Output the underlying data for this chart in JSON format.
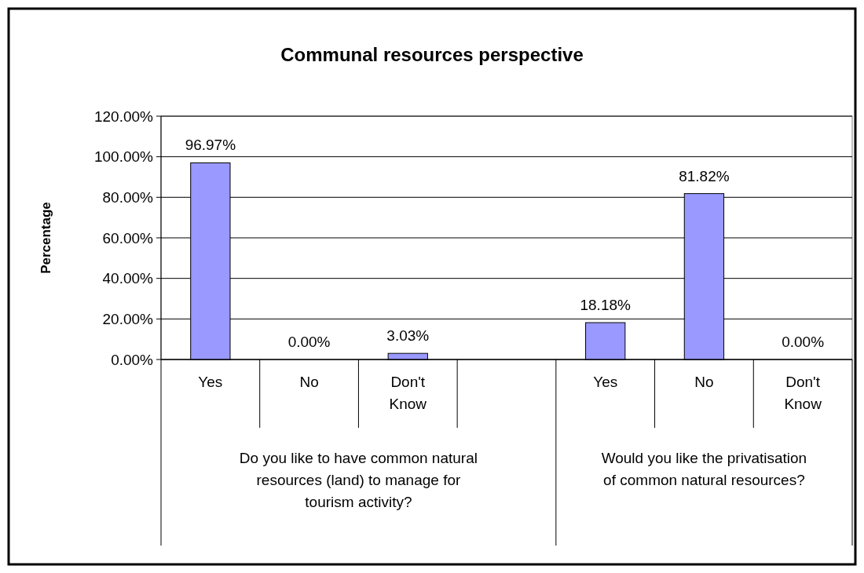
{
  "chart_data": {
    "type": "bar",
    "title": "Communal resources perspective",
    "ylabel": "Percentage",
    "categories": [
      "Yes",
      "No",
      "Don't Know",
      null,
      "Yes",
      "No",
      "Don't Know"
    ],
    "values": [
      96.97,
      0.0,
      3.03,
      null,
      18.18,
      81.82,
      0.0
    ],
    "value_labels": [
      "96.97%",
      "0.00%",
      "3.03%",
      null,
      "18.18%",
      "81.82%",
      "0.00%"
    ],
    "color": "#9999ff",
    "ylim": [
      0,
      120
    ],
    "yticks": [
      {
        "value": 0,
        "label": "0.00%"
      },
      {
        "value": 20,
        "label": "20.00%"
      },
      {
        "value": 40,
        "label": "40.00%"
      },
      {
        "value": 60,
        "label": "60.00%"
      },
      {
        "value": 80,
        "label": "80.00%"
      },
      {
        "value": 100,
        "label": "100.00%"
      },
      {
        "value": 120,
        "label": "120.00%"
      }
    ],
    "grid": "y",
    "annotations": [
      "Do you like to have common natural resources (land) to manage for tourism activity?",
      "Would you like the privatisation of common natural resources?"
    ]
  }
}
